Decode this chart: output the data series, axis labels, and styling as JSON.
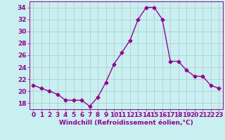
{
  "x": [
    0,
    1,
    2,
    3,
    4,
    5,
    6,
    7,
    8,
    9,
    10,
    11,
    12,
    13,
    14,
    15,
    16,
    17,
    18,
    19,
    20,
    21,
    22,
    23
  ],
  "y": [
    21,
    20.5,
    20,
    19.5,
    18.5,
    18.5,
    18.5,
    17.5,
    19,
    21.5,
    24.5,
    26.5,
    28.5,
    32,
    34,
    34,
    32,
    25,
    25,
    23.5,
    22.5,
    22.5,
    21,
    20.5
  ],
  "line_color": "#990099",
  "marker": "D",
  "markersize": 2.5,
  "bg_color": "#c8f0f0",
  "grid_color": "#b0c8c8",
  "xlabel": "Windchill (Refroidissement éolien,°C)",
  "xlabel_fontsize": 6.5,
  "tick_label_fontsize": 6.5,
  "ylim": [
    17,
    35
  ],
  "yticks": [
    18,
    20,
    22,
    24,
    26,
    28,
    30,
    32,
    34
  ],
  "xticks": [
    0,
    1,
    2,
    3,
    4,
    5,
    6,
    7,
    8,
    9,
    10,
    11,
    12,
    13,
    14,
    15,
    16,
    17,
    18,
    19,
    20,
    21,
    22,
    23
  ]
}
